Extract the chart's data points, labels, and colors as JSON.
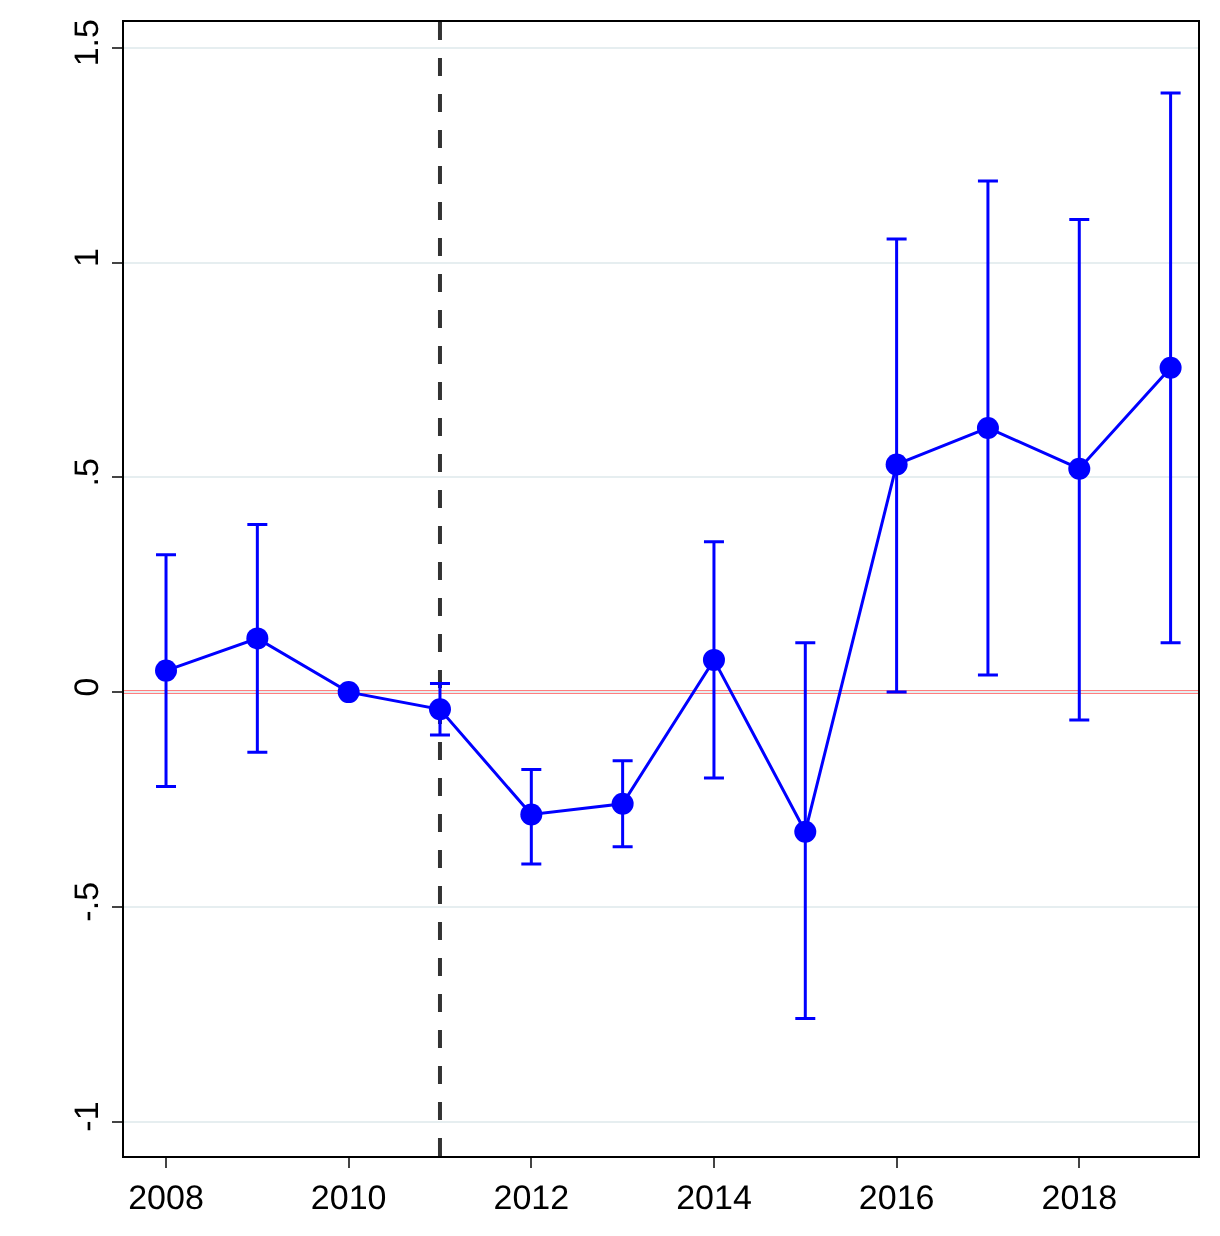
{
  "chart_data": {
    "type": "line",
    "x": [
      2008,
      2009,
      2010,
      2011,
      2012,
      2013,
      2014,
      2015,
      2016,
      2017,
      2018,
      2019
    ],
    "series": [
      {
        "color": "#0000ff",
        "values": [
          0.05,
          0.125,
          0.0,
          -0.04,
          -0.285,
          -0.26,
          0.075,
          -0.325,
          0.53,
          0.615,
          0.52,
          0.755
        ],
        "errors": [
          [
            -0.22,
            0.32
          ],
          [
            -0.14,
            0.39
          ],
          null,
          [
            -0.1,
            0.02
          ],
          [
            -0.4,
            -0.18
          ],
          [
            -0.36,
            -0.16
          ],
          [
            -0.2,
            0.35
          ],
          [
            -0.76,
            0.115
          ],
          [
            0.0,
            1.055
          ],
          [
            0.04,
            1.19
          ],
          [
            -0.065,
            1.1
          ],
          [
            0.115,
            1.395
          ]
        ]
      }
    ],
    "xlim": [
      2007.54,
      2019.3
    ],
    "xticks": [
      2008,
      2010,
      2012,
      2014,
      2016,
      2018
    ],
    "ylim": [
      -1.08,
      1.56
    ],
    "yticks": [
      {
        "value": -1,
        "label": "-1"
      },
      {
        "value": -0.5,
        "label": "-.5"
      },
      {
        "value": 0,
        "label": "0"
      },
      {
        "value": 0.5,
        "label": ".5"
      },
      {
        "value": 1,
        "label": "1"
      },
      {
        "value": 1.5,
        "label": "1.5"
      }
    ],
    "ref_lines": [
      {
        "axis": "x",
        "value": 2011,
        "color": "#333333",
        "line_style": "dashed"
      },
      {
        "axis": "y",
        "value": 0,
        "color": "#ff0000",
        "line_style": "solid"
      }
    ],
    "grid": "y",
    "marker": "circle",
    "line_style": "solid"
  }
}
